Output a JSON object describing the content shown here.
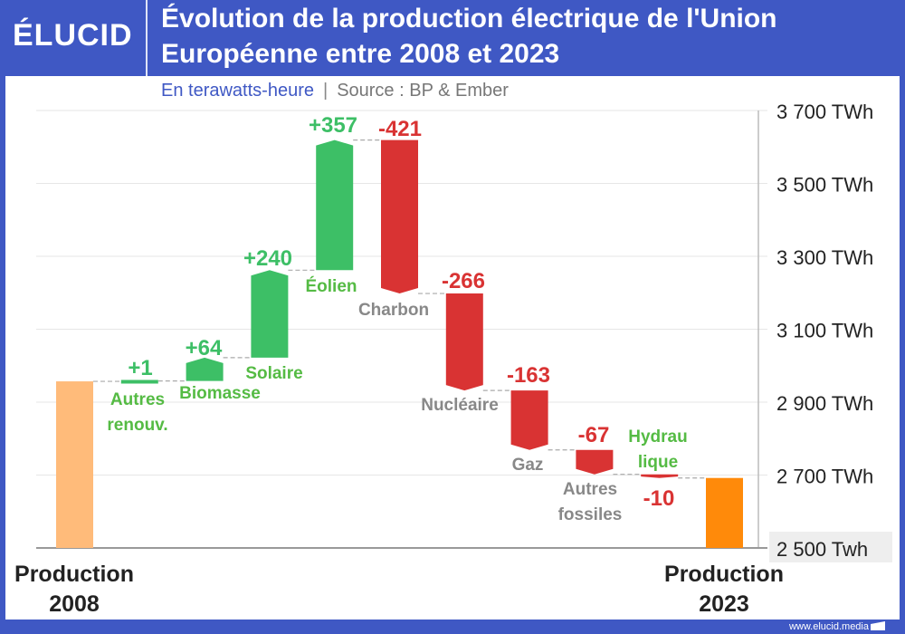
{
  "header": {
    "logo": "ÉLUCID",
    "title_line1": "Évolution de la production électrique de l'Union",
    "title_line2": "Européenne entre 2008 et 2023",
    "unit": "En terawatts-heure",
    "source": "Source : BP & Ember"
  },
  "footer": {
    "url": "www.elucid.media"
  },
  "colors": {
    "frame": "#3f58c4",
    "increase": "#3dbf66",
    "decrease": "#d93333",
    "start": "#ffbb7a",
    "end": "#ff8a0a",
    "green_label": "#55bb44",
    "gray_label": "#888888"
  },
  "chart_data": {
    "type": "waterfall",
    "title": "Évolution de la production électrique de l'Union Européenne entre 2008 et 2023",
    "ylabel": "En terawatts-heure",
    "ylim": [
      2500,
      3700
    ],
    "yticks": [
      {
        "value": 3700,
        "label": "3 700 TWh"
      },
      {
        "value": 3500,
        "label": "3 500 TWh"
      },
      {
        "value": 3300,
        "label": "3 300 TWh"
      },
      {
        "value": 3100,
        "label": "3 100 TWh"
      },
      {
        "value": 2900,
        "label": "2 900 TWh"
      },
      {
        "value": 2700,
        "label": "2 700 TWh"
      },
      {
        "value": 2500,
        "label": "2 500 Twh"
      }
    ],
    "grid": true,
    "start": {
      "label_line1": "Production",
      "label_line2": "2008",
      "value": 2957
    },
    "end": {
      "label_line1": "Production",
      "label_line2": "2023",
      "value": 2692
    },
    "steps": [
      {
        "name_line1": "Autres",
        "name_line2": "renouv.",
        "value": 1,
        "value_label": "+1",
        "name_color": "green"
      },
      {
        "name_line1": "Biomasse",
        "name_line2": "",
        "value": 64,
        "value_label": "+64",
        "name_color": "green"
      },
      {
        "name_line1": "Solaire",
        "name_line2": "",
        "value": 240,
        "value_label": "+240",
        "name_color": "green"
      },
      {
        "name_line1": "Éolien",
        "name_line2": "",
        "value": 357,
        "value_label": "+357",
        "name_color": "green"
      },
      {
        "name_line1": "Charbon",
        "name_line2": "",
        "value": -421,
        "value_label": "-421",
        "name_color": "gray"
      },
      {
        "name_line1": "Nucléaire",
        "name_line2": "",
        "value": -266,
        "value_label": "-266",
        "name_color": "gray"
      },
      {
        "name_line1": "Gaz",
        "name_line2": "",
        "value": -163,
        "value_label": "-163",
        "name_color": "gray"
      },
      {
        "name_line1": "Autres",
        "name_line2": "fossiles",
        "value": -67,
        "value_label": "-67",
        "name_color": "gray"
      },
      {
        "name_line1": "Hydrau",
        "name_line2": "lique",
        "value": -10,
        "value_label": "-10",
        "name_color": "green"
      }
    ]
  }
}
